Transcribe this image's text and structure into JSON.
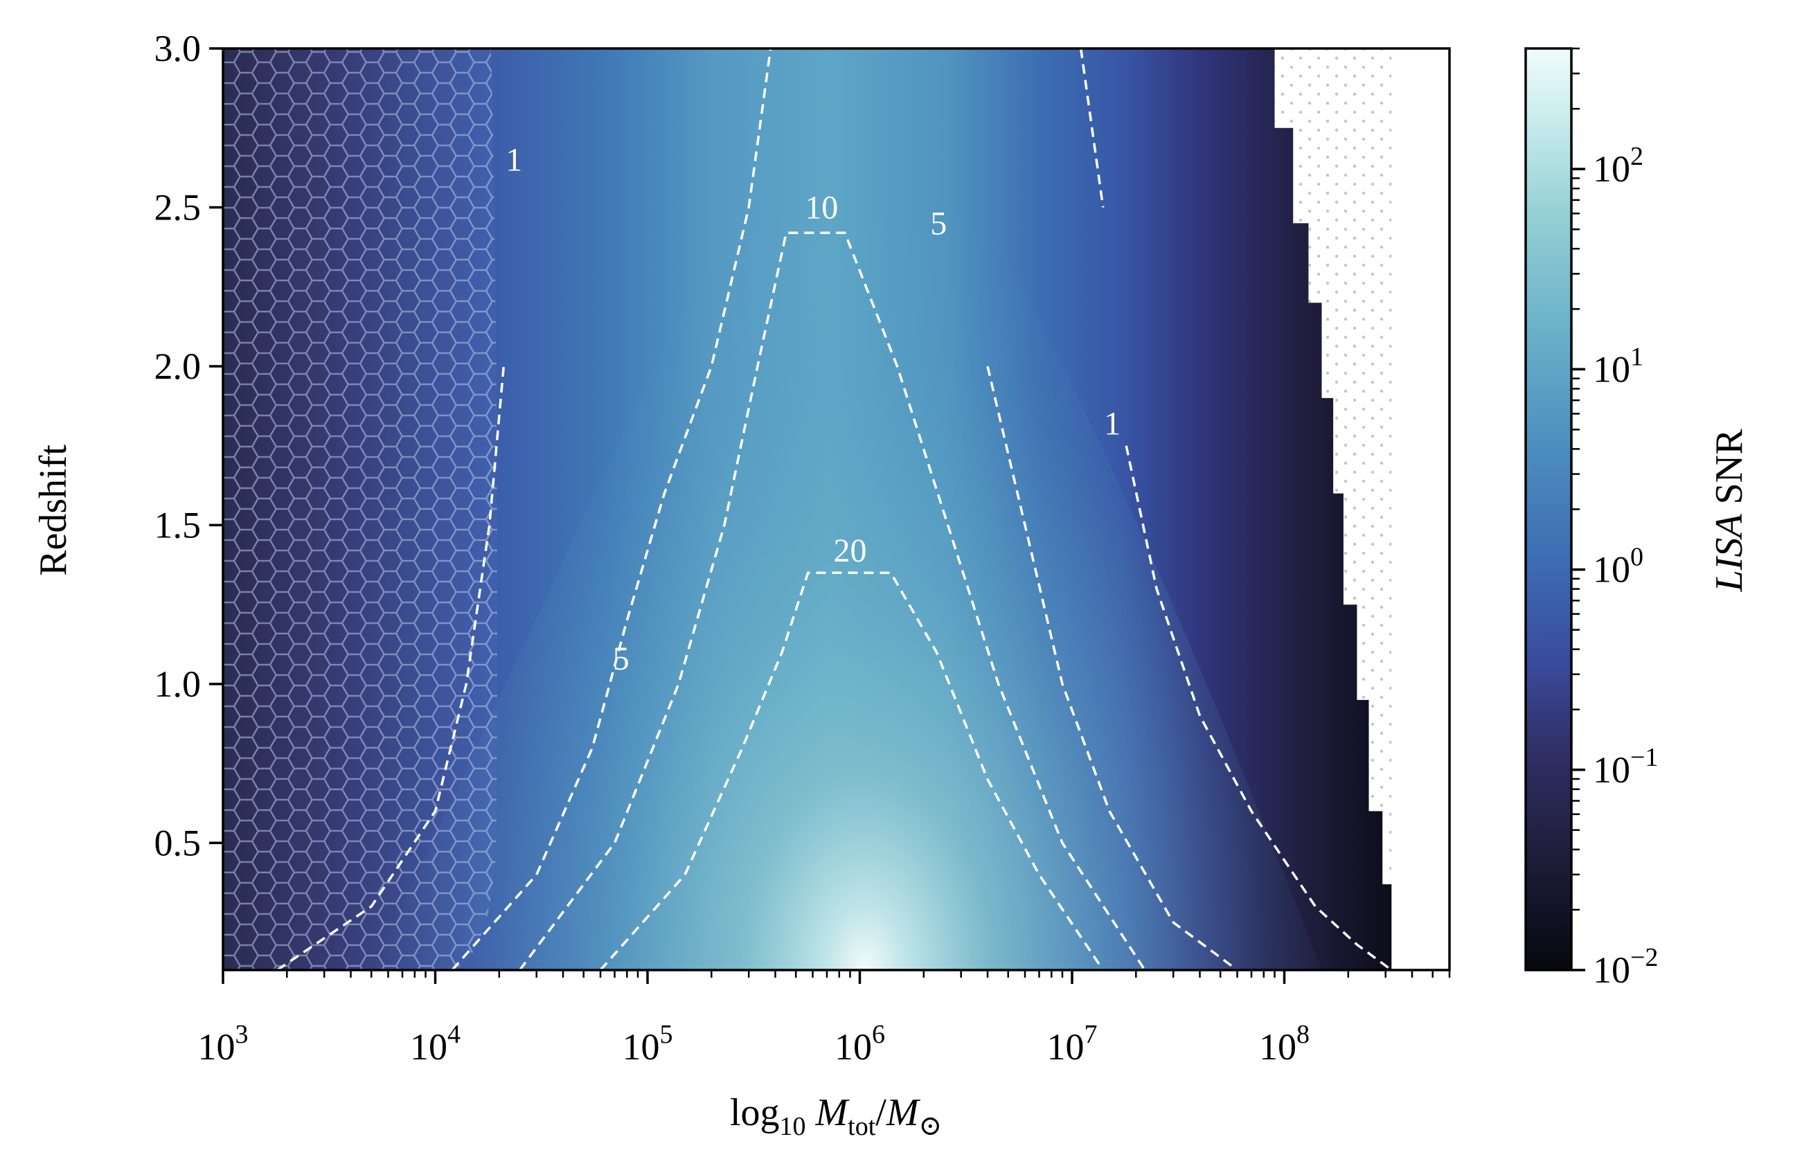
{
  "chart_data": {
    "type": "heatmap",
    "title": "",
    "xlabel": "log10 Mtot/M⊙",
    "ylabel": "Redshift",
    "x_scale": "log",
    "xlim": [
      1000,
      600000000
    ],
    "ylim": [
      0.1,
      3.0
    ],
    "x_ticks": [
      {
        "exp": "3",
        "value": 1000
      },
      {
        "exp": "4",
        "value": 10000
      },
      {
        "exp": "5",
        "value": 100000
      },
      {
        "exp": "6",
        "value": 1000000
      },
      {
        "exp": "7",
        "value": 10000000
      },
      {
        "exp": "8",
        "value": 100000000
      }
    ],
    "y_ticks": [
      "0.5",
      "1.0",
      "1.5",
      "2.0",
      "2.5",
      "3.0"
    ],
    "y_tick_values": [
      0.5,
      1.0,
      1.5,
      2.0,
      2.5,
      3.0
    ],
    "colorbar": {
      "label": "LISA SNR",
      "scale": "log",
      "range": [
        0.01,
        400
      ],
      "ticks": [
        {
          "exp": "−2",
          "value": 0.01
        },
        {
          "exp": "−1",
          "value": 0.1
        },
        {
          "exp": "0",
          "value": 1
        },
        {
          "exp": "1",
          "value": 10
        },
        {
          "exp": "2",
          "value": 100
        }
      ],
      "colormap": [
        "#08080f",
        "#2a2450",
        "#3a4a9c",
        "#3d6eb3",
        "#5599c1",
        "#7fc1cb",
        "#c8ebec",
        "#f0fbfb"
      ]
    },
    "contours": [
      {
        "label": "1",
        "style": "dashed",
        "color": "#ffffff"
      },
      {
        "label": "5",
        "style": "dashed",
        "color": "#ffffff"
      },
      {
        "label": "10",
        "style": "dashed",
        "color": "#ffffff"
      },
      {
        "label": "20",
        "style": "dashed",
        "color": "#ffffff"
      }
    ],
    "snr_peak": {
      "mass": 1000000,
      "redshift": 0.1,
      "snr": 400
    },
    "contour_points": {
      "snr1_left": [
        [
          1800,
          0.1
        ],
        [
          5000,
          0.3
        ],
        [
          10000,
          0.6
        ],
        [
          14000,
          1.0
        ],
        [
          18000,
          1.5
        ],
        [
          21000,
          2.0
        ],
        [
          23000,
          2.55
        ],
        [
          27000,
          3.0
        ]
      ],
      "snr5_left": [
        [
          12000,
          0.1
        ],
        [
          30000,
          0.4
        ],
        [
          55000,
          0.8
        ],
        [
          80000,
          1.2
        ],
        [
          120000,
          1.6
        ],
        [
          200000,
          2.0
        ],
        [
          300000,
          2.5
        ],
        [
          380000,
          3.0
        ]
      ],
      "snr10": [
        [
          25000,
          0.1
        ],
        [
          70000,
          0.5
        ],
        [
          140000,
          1.0
        ],
        [
          230000,
          1.5
        ],
        [
          330000,
          2.0
        ],
        [
          450000,
          2.42
        ],
        [
          850000,
          2.42
        ],
        [
          1500000,
          2.0
        ],
        [
          2600000,
          1.5
        ],
        [
          4500000,
          1.0
        ],
        [
          9000000,
          0.5
        ],
        [
          22000000,
          0.1
        ]
      ],
      "snr20": [
        [
          60000,
          0.1
        ],
        [
          150000,
          0.4
        ],
        [
          280000,
          0.8
        ],
        [
          430000,
          1.1
        ],
        [
          570000,
          1.35
        ],
        [
          1400000,
          1.35
        ],
        [
          2300000,
          1.1
        ],
        [
          4000000,
          0.7
        ],
        [
          7000000,
          0.4
        ],
        [
          14000000,
          0.1
        ]
      ],
      "snr5_right": [
        [
          2800000,
          2.45
        ],
        [
          4000000,
          2.0
        ],
        [
          6000000,
          1.5
        ],
        [
          9000000,
          1.0
        ],
        [
          15000000,
          0.6
        ],
        [
          30000000,
          0.25
        ],
        [
          60000000,
          0.1
        ]
      ],
      "snr1_right": [
        [
          11000000,
          3.0
        ],
        [
          14000000,
          2.5
        ],
        [
          17000000,
          2.0
        ],
        [
          18000000,
          1.75
        ],
        [
          25000000,
          1.3
        ],
        [
          40000000,
          0.9
        ],
        [
          70000000,
          0.6
        ],
        [
          140000000,
          0.3
        ],
        [
          220000000,
          0.18
        ],
        [
          320000000,
          0.1
        ]
      ]
    },
    "hatched_region": {
      "pattern": "hexagon",
      "mass_max": 20000
    },
    "dotted_region": {
      "pattern": "dots",
      "mass_min": 90000000,
      "mass_max": 320000000
    }
  }
}
